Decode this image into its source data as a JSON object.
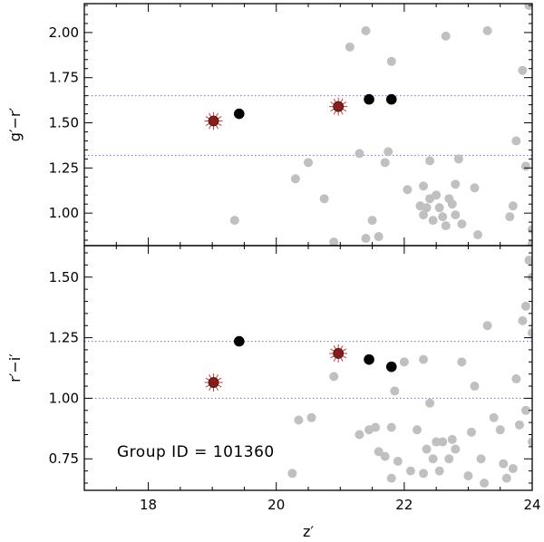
{
  "chart_data": [
    {
      "type": "scatter",
      "panel": "top",
      "ylabel": "g′−r′",
      "xlim": [
        17,
        24
      ],
      "ylim": [
        0.82,
        2.16
      ],
      "yticks": [
        1.0,
        1.25,
        1.5,
        1.75,
        2.0
      ],
      "ytick_labels": [
        "1.00",
        "1.25",
        "1.50",
        "1.75",
        "2.00"
      ],
      "hlines": [
        1.65,
        1.32
      ],
      "series": [
        {
          "role": "field",
          "color": "#c0c0c0",
          "points": [
            [
              19.35,
              0.96
            ],
            [
              20.3,
              1.19
            ],
            [
              20.5,
              1.28
            ],
            [
              20.75,
              1.08
            ],
            [
              20.9,
              0.84
            ],
            [
              21.15,
              1.92
            ],
            [
              21.3,
              1.33
            ],
            [
              21.4,
              2.01
            ],
            [
              21.5,
              0.96
            ],
            [
              21.6,
              0.87
            ],
            [
              21.4,
              0.86
            ],
            [
              21.75,
              1.34
            ],
            [
              21.8,
              1.84
            ],
            [
              21.7,
              1.28
            ],
            [
              22.05,
              1.13
            ],
            [
              22.3,
              1.15
            ],
            [
              22.4,
              1.29
            ],
            [
              22.25,
              1.04
            ],
            [
              22.35,
              1.03
            ],
            [
              22.4,
              1.08
            ],
            [
              22.3,
              0.99
            ],
            [
              22.45,
              0.96
            ],
            [
              22.5,
              1.1
            ],
            [
              22.55,
              1.03
            ],
            [
              22.6,
              0.98
            ],
            [
              22.65,
              1.98
            ],
            [
              22.7,
              1.08
            ],
            [
              22.75,
              1.05
            ],
            [
              22.8,
              1.16
            ],
            [
              22.85,
              1.3
            ],
            [
              22.8,
              0.99
            ],
            [
              22.9,
              0.94
            ],
            [
              22.65,
              0.93
            ],
            [
              23.1,
              1.14
            ],
            [
              23.15,
              0.88
            ],
            [
              23.3,
              2.01
            ],
            [
              23.75,
              1.4
            ],
            [
              23.85,
              1.79
            ],
            [
              23.9,
              1.26
            ],
            [
              23.95,
              2.15
            ],
            [
              23.7,
              1.04
            ],
            [
              23.65,
              0.98
            ],
            [
              24.0,
              0.91
            ],
            [
              24.0,
              0.83
            ]
          ]
        },
        {
          "role": "members",
          "color": "#000000",
          "points": [
            [
              19.42,
              1.55
            ],
            [
              21.45,
              1.63
            ],
            [
              21.8,
              1.63
            ]
          ]
        },
        {
          "role": "highlighted",
          "color": "#8b1a1a",
          "points": [
            [
              19.02,
              1.51
            ],
            [
              20.97,
              1.59
            ]
          ]
        }
      ]
    },
    {
      "type": "scatter",
      "panel": "bottom",
      "xlabel": "z′",
      "ylabel": "r′−i′",
      "xlim": [
        17,
        24
      ],
      "ylim": [
        0.62,
        1.63
      ],
      "xticks": [
        18,
        20,
        22,
        24
      ],
      "xtick_labels": [
        "18",
        "20",
        "22",
        "24"
      ],
      "yticks": [
        0.75,
        1.0,
        1.25,
        1.5
      ],
      "ytick_labels": [
        "0.75",
        "1.00",
        "1.25",
        "1.50"
      ],
      "hlines": [
        1.235,
        1.0
      ],
      "annotation": "Group ID = 101360",
      "series": [
        {
          "role": "field",
          "color": "#c0c0c0",
          "points": [
            [
              20.25,
              0.69
            ],
            [
              20.35,
              0.91
            ],
            [
              20.55,
              0.92
            ],
            [
              20.9,
              1.09
            ],
            [
              21.3,
              0.85
            ],
            [
              21.45,
              0.87
            ],
            [
              21.55,
              0.88
            ],
            [
              21.6,
              0.78
            ],
            [
              21.7,
              0.76
            ],
            [
              21.8,
              0.67
            ],
            [
              21.8,
              0.88
            ],
            [
              21.85,
              1.03
            ],
            [
              21.9,
              0.74
            ],
            [
              22.0,
              1.15
            ],
            [
              22.1,
              0.7
            ],
            [
              22.2,
              0.87
            ],
            [
              22.3,
              0.69
            ],
            [
              22.35,
              0.79
            ],
            [
              22.4,
              0.98
            ],
            [
              22.45,
              0.75
            ],
            [
              22.5,
              0.82
            ],
            [
              22.55,
              0.7
            ],
            [
              22.6,
              0.82
            ],
            [
              22.7,
              0.75
            ],
            [
              22.75,
              0.83
            ],
            [
              22.8,
              0.79
            ],
            [
              22.9,
              1.15
            ],
            [
              23.0,
              0.68
            ],
            [
              23.05,
              0.86
            ],
            [
              23.1,
              1.05
            ],
            [
              23.2,
              0.75
            ],
            [
              23.25,
              0.65
            ],
            [
              23.3,
              1.3
            ],
            [
              23.4,
              0.92
            ],
            [
              23.5,
              0.87
            ],
            [
              23.55,
              0.73
            ],
            [
              23.6,
              0.67
            ],
            [
              23.7,
              0.71
            ],
            [
              23.75,
              1.08
            ],
            [
              23.8,
              0.89
            ],
            [
              23.85,
              1.32
            ],
            [
              23.9,
              1.38
            ],
            [
              23.9,
              0.95
            ],
            [
              23.95,
              1.57
            ],
            [
              24.0,
              1.27
            ],
            [
              24.0,
              1.5
            ],
            [
              24.0,
              0.82
            ],
            [
              22.3,
              1.16
            ]
          ]
        },
        {
          "role": "members",
          "color": "#000000",
          "points": [
            [
              19.42,
              1.235
            ],
            [
              21.45,
              1.16
            ],
            [
              21.8,
              1.13
            ]
          ]
        },
        {
          "role": "highlighted",
          "color": "#8b1a1a",
          "points": [
            [
              19.02,
              1.065
            ],
            [
              20.97,
              1.185
            ]
          ]
        }
      ]
    }
  ]
}
